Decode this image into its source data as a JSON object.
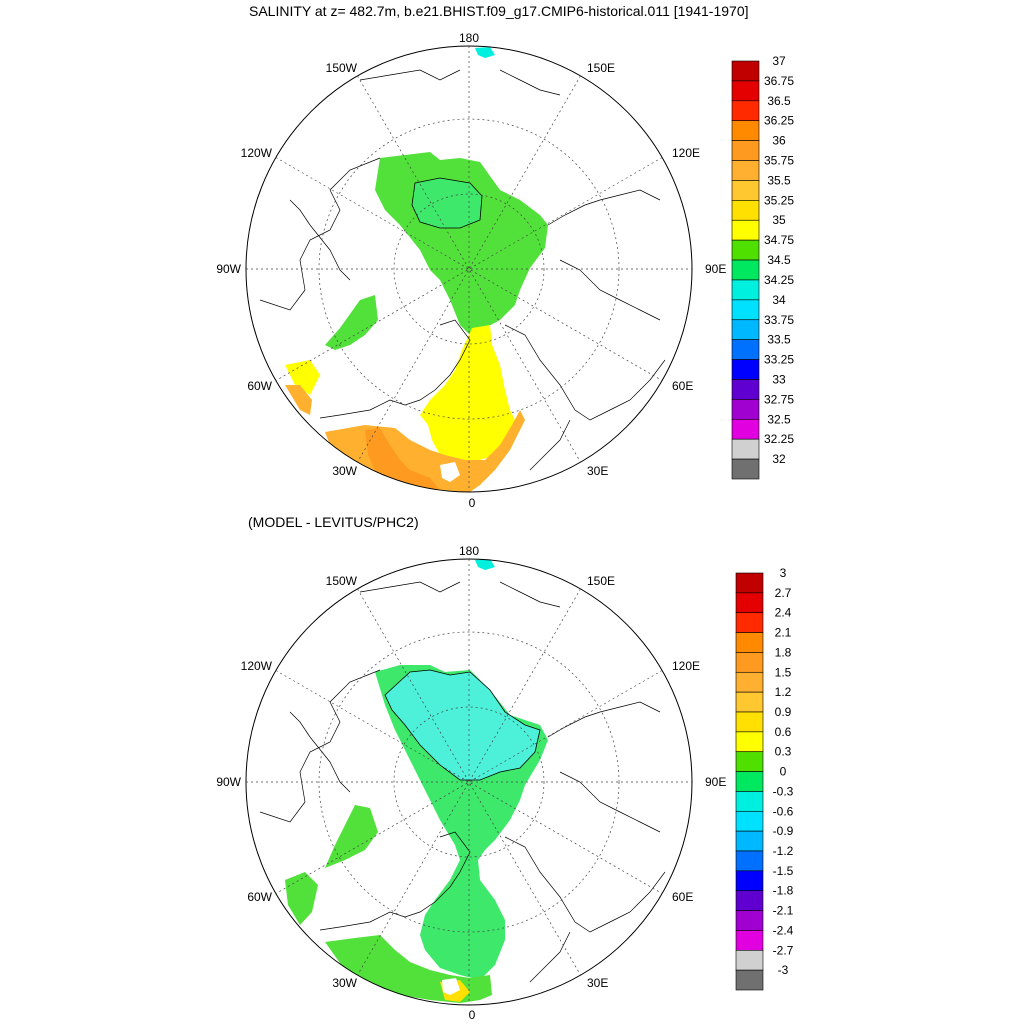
{
  "titles": {
    "top": "SALINITY at z= 482.7m, b.e21.BHIST.f09_g17.CMIP6-historical.011 [1941-1970]",
    "bottom": "(MODEL - LEVITUS/PHC2)"
  },
  "map_labels": {
    "top": "180",
    "bottom": "0",
    "left": "90W",
    "right": "90E",
    "ul1": "150W",
    "ul2": "120W",
    "ur1": "150E",
    "ur2": "120E",
    "ll1": "60W",
    "ll2": "30W",
    "lr1": "60E",
    "lr2": "30E"
  },
  "colorbars": [
    {
      "name": "salinity",
      "labels": [
        "37",
        "36.75",
        "36.5",
        "36.25",
        "36",
        "35.75",
        "35.5",
        "35.25",
        "35",
        "34.75",
        "34.5",
        "34.25",
        "34",
        "33.75",
        "33.5",
        "33.25",
        "33",
        "32.75",
        "32.5",
        "32.25",
        "32"
      ],
      "colors": [
        "#C00000",
        "#E40000",
        "#FF2A00",
        "#FF8A00",
        "#FF9A20",
        "#FFB030",
        "#FFC830",
        "#FFE000",
        "#FFFF00",
        "#50E000",
        "#00E860",
        "#00F0E0",
        "#00E0FF",
        "#00B8FF",
        "#0070FF",
        "#0000FF",
        "#6000D0",
        "#A000D0",
        "#E000E0",
        "#D0D0D0",
        "#707070"
      ]
    },
    {
      "name": "difference",
      "labels": [
        "3",
        "2.7",
        "2.4",
        "2.1",
        "1.8",
        "1.5",
        "1.2",
        "0.9",
        "0.6",
        "0.3",
        "0",
        "-0.3",
        "-0.6",
        "-0.9",
        "-1.2",
        "-1.5",
        "-1.8",
        "-2.1",
        "-2.4",
        "-2.7",
        "-3"
      ],
      "colors": [
        "#C00000",
        "#E40000",
        "#FF2A00",
        "#FF8A00",
        "#FF9A20",
        "#FFB030",
        "#FFC830",
        "#FFE000",
        "#FFFF00",
        "#50E000",
        "#00E860",
        "#00F0E0",
        "#00E0FF",
        "#00B8FF",
        "#0070FF",
        "#0000FF",
        "#6000D0",
        "#A000D0",
        "#E000E0",
        "#D0D0D0",
        "#707070"
      ]
    }
  ],
  "colors": {
    "green": "#52E03A",
    "light_green": "#3DE86A",
    "yellow": "#FFF200",
    "light_orange": "#FFB02E",
    "cyan_low": "#4DF0D8",
    "cyan_pale": "#00F0D0"
  }
}
